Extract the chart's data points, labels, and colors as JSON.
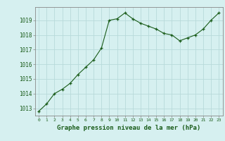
{
  "x": [
    0,
    1,
    2,
    3,
    4,
    5,
    6,
    7,
    8,
    9,
    10,
    11,
    12,
    13,
    14,
    15,
    16,
    17,
    18,
    19,
    20,
    21,
    22,
    23
  ],
  "y": [
    1012.8,
    1013.3,
    1014.0,
    1014.3,
    1014.7,
    1015.3,
    1015.8,
    1016.3,
    1017.1,
    1019.0,
    1019.1,
    1019.5,
    1019.1,
    1018.8,
    1018.6,
    1018.4,
    1018.1,
    1018.0,
    1017.6,
    1017.8,
    1018.0,
    1018.4,
    1019.0,
    1019.5
  ],
  "line_color": "#1a5c1a",
  "marker": "+",
  "marker_size": 3,
  "background_color": "#d6f0f0",
  "grid_color": "#b8dada",
  "xlabel": "Graphe pression niveau de la mer (hPa)",
  "xlabel_color": "#1a5c1a",
  "tick_color": "#1a5c1a",
  "axis_color": "#888888",
  "ylim": [
    1012.5,
    1019.9
  ],
  "yticks": [
    1013,
    1014,
    1015,
    1016,
    1017,
    1018,
    1019
  ],
  "xlim": [
    -0.5,
    23.5
  ],
  "xticks": [
    0,
    1,
    2,
    3,
    4,
    5,
    6,
    7,
    8,
    9,
    10,
    11,
    12,
    13,
    14,
    15,
    16,
    17,
    18,
    19,
    20,
    21,
    22,
    23
  ]
}
